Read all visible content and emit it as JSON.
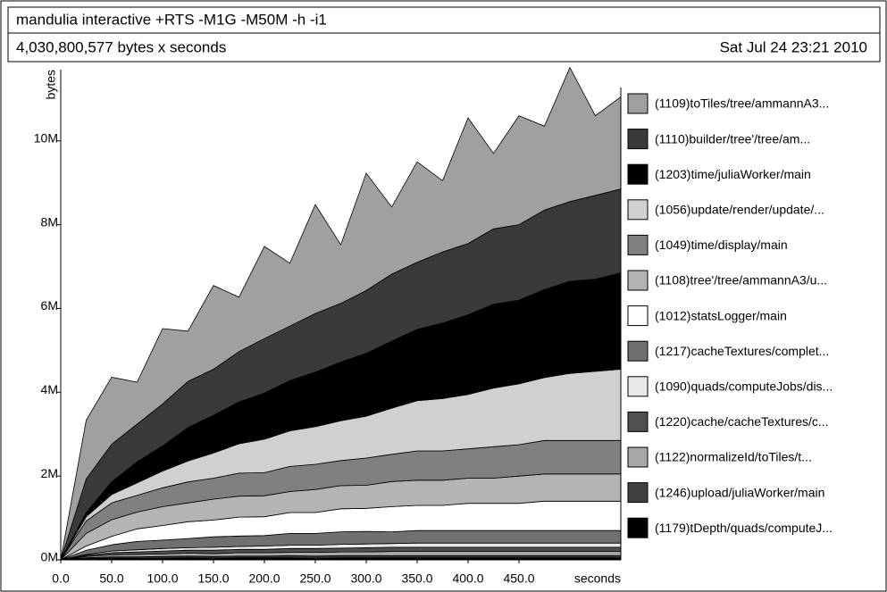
{
  "chart_data": {
    "type": "area",
    "title": "mandulia interactive +RTS -M1G -M50M -h -i1",
    "subtitle": "4,030,800,577 bytes x seconds",
    "date": "Sat Jul 24 23:21 2010",
    "y_label": "bytes",
    "x_label": "seconds",
    "stacked": true,
    "x": [
      0,
      25,
      50,
      75,
      100,
      125,
      150,
      175,
      200,
      225,
      250,
      275,
      300,
      325,
      350,
      375,
      400,
      425,
      450,
      475,
      500,
      525,
      550
    ],
    "xlim": [
      0,
      550
    ],
    "xticks": [
      {
        "value": 0,
        "label": "0.0"
      },
      {
        "value": 50,
        "label": "50.0"
      },
      {
        "value": 100,
        "label": "100.0"
      },
      {
        "value": 150,
        "label": "150.0"
      },
      {
        "value": 200,
        "label": "200.0"
      },
      {
        "value": 250,
        "label": "250.0"
      },
      {
        "value": 300,
        "label": "300.0"
      },
      {
        "value": 350,
        "label": "350.0"
      },
      {
        "value": 400,
        "label": "400.0"
      },
      {
        "value": 450,
        "label": "450.0"
      }
    ],
    "ylim": [
      0,
      11700000
    ],
    "yticks": [
      {
        "value": 0,
        "label": "0M"
      },
      {
        "value": 2000000,
        "label": "2M"
      },
      {
        "value": 4000000,
        "label": "4M"
      },
      {
        "value": 6000000,
        "label": "6M"
      },
      {
        "value": 8000000,
        "label": "8M"
      },
      {
        "value": 10000000,
        "label": "10M"
      }
    ],
    "series": [
      {
        "name": "(1109)toTiles/tree/ammannA3...",
        "color": "#a0a0a0",
        "values": [
          0,
          1400000,
          1600000,
          1000000,
          1800000,
          1200000,
          2000000,
          1300000,
          2200000,
          1500000,
          2600000,
          1400000,
          2800000,
          1600000,
          2400000,
          1700000,
          3000000,
          1800000,
          2600000,
          2000000,
          3200000,
          1900000,
          2200000
        ]
      },
      {
        "name": "(1110)builder/tree'/tree/am...",
        "color": "#3a3a3a",
        "values": [
          0,
          800000,
          900000,
          900000,
          1000000,
          1100000,
          1100000,
          1200000,
          1300000,
          1300000,
          1400000,
          1400000,
          1500000,
          1600000,
          1600000,
          1700000,
          1700000,
          1800000,
          1800000,
          1900000,
          1900000,
          2000000,
          2000000
        ]
      },
      {
        "name": "(1203)time/juliaWorker/main",
        "color": "#000000",
        "values": [
          0,
          100000,
          300000,
          500000,
          600000,
          800000,
          900000,
          1000000,
          1100000,
          1200000,
          1300000,
          1400000,
          1500000,
          1600000,
          1700000,
          1800000,
          1900000,
          2000000,
          2000000,
          2100000,
          2200000,
          2200000,
          2300000
        ]
      },
      {
        "name": "(1056)update/render/update/...",
        "color": "#d0d0d0",
        "values": [
          0,
          100000,
          200000,
          300000,
          400000,
          500000,
          600000,
          700000,
          800000,
          850000,
          900000,
          950000,
          1000000,
          1100000,
          1200000,
          1250000,
          1300000,
          1400000,
          1450000,
          1500000,
          1600000,
          1650000,
          1700000
        ]
      },
      {
        "name": "(1049)time/display/main",
        "color": "#808080",
        "values": [
          0,
          300000,
          400000,
          400000,
          450000,
          500000,
          500000,
          550000,
          550000,
          600000,
          600000,
          600000,
          650000,
          650000,
          700000,
          700000,
          700000,
          750000,
          750000,
          800000,
          800000,
          800000,
          800000
        ]
      },
      {
        "name": "(1108)tree'/tree/ammannA3/u...",
        "color": "#b4b4b4",
        "values": [
          0,
          300000,
          400000,
          400000,
          450000,
          450000,
          500000,
          500000,
          500000,
          500000,
          550000,
          550000,
          550000,
          600000,
          600000,
          600000,
          600000,
          600000,
          650000,
          650000,
          650000,
          650000,
          650000
        ]
      },
      {
        "name": "(1012)statsLogger/main",
        "color": "#ffffff",
        "values": [
          0,
          100000,
          200000,
          300000,
          350000,
          400000,
          400000,
          450000,
          450000,
          500000,
          500000,
          550000,
          550000,
          600000,
          600000,
          600000,
          650000,
          650000,
          650000,
          700000,
          700000,
          700000,
          700000
        ]
      },
      {
        "name": "(1217)cacheTextures/complet...",
        "color": "#707070",
        "values": [
          0,
          100000,
          150000,
          200000,
          200000,
          220000,
          250000,
          250000,
          250000,
          280000,
          280000,
          300000,
          300000,
          280000,
          300000,
          300000,
          300000,
          300000,
          300000,
          300000,
          300000,
          300000,
          300000
        ]
      },
      {
        "name": "(1090)quads/computeJobs/dis...",
        "color": "#e8e8e8",
        "values": [
          0,
          20000,
          40000,
          50000,
          60000,
          60000,
          70000,
          70000,
          80000,
          80000,
          80000,
          90000,
          90000,
          90000,
          100000,
          100000,
          100000,
          100000,
          100000,
          100000,
          100000,
          100000,
          100000
        ]
      },
      {
        "name": "(1220)cache/cacheTextures/c...",
        "color": "#505050",
        "values": [
          0,
          30000,
          50000,
          60000,
          70000,
          70000,
          80000,
          80000,
          80000,
          90000,
          90000,
          90000,
          100000,
          100000,
          100000,
          100000,
          100000,
          100000,
          100000,
          100000,
          100000,
          100000,
          100000
        ]
      },
      {
        "name": "(1122)normalizeId/toTiles/t...",
        "color": "#a8a8a8",
        "values": [
          0,
          30000,
          50000,
          60000,
          60000,
          70000,
          70000,
          80000,
          80000,
          80000,
          90000,
          90000,
          90000,
          100000,
          100000,
          100000,
          100000,
          100000,
          100000,
          100000,
          100000,
          100000,
          100000
        ]
      },
      {
        "name": "(1246)upload/juliaWorker/main",
        "color": "#404040",
        "values": [
          0,
          20000,
          30000,
          30000,
          40000,
          40000,
          40000,
          40000,
          40000,
          50000,
          50000,
          50000,
          50000,
          50000,
          50000,
          50000,
          50000,
          50000,
          50000,
          50000,
          50000,
          50000,
          50000
        ]
      },
      {
        "name": "(1179)tDepth/quads/computeJ...",
        "color": "#000000",
        "values": [
          0,
          30000,
          40000,
          40000,
          40000,
          50000,
          40000,
          50000,
          50000,
          50000,
          40000,
          50000,
          50000,
          50000,
          50000,
          50000,
          50000,
          50000,
          50000,
          50000,
          50000,
          50000,
          50000
        ]
      }
    ]
  }
}
